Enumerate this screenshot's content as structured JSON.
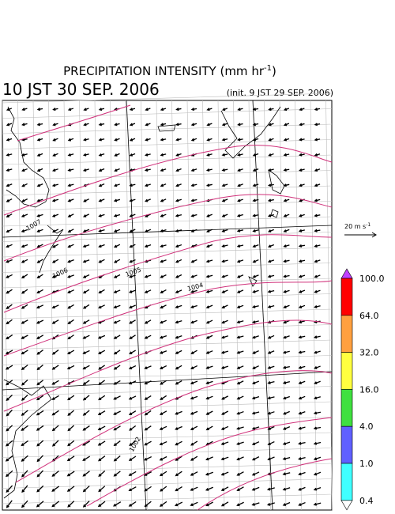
{
  "header": {
    "title": "PRECIPITATION INTENSITY (mm hr",
    "title_exponent": "-1",
    "title_close": ")",
    "valid_time": "10 JST 30 SEP. 2006",
    "init_time": "(init. 9 JST 29 SEP. 2006)"
  },
  "vector_legend": {
    "label": "20 m s",
    "exponent": "-1"
  },
  "contour_labels": [
    "1007",
    "1006",
    "1005",
    "1004",
    "1002"
  ],
  "colorbar": {
    "labels": [
      "100.0",
      "64.0",
      "32.0",
      "16.0",
      "4.0",
      "1.0",
      "0.4"
    ],
    "colors": [
      "#ff0000",
      "#ffa040",
      "#ffff40",
      "#40e040",
      "#6060ff",
      "#40ffff"
    ],
    "over_color": "#c040ff",
    "under_color": "#ffffff"
  }
}
